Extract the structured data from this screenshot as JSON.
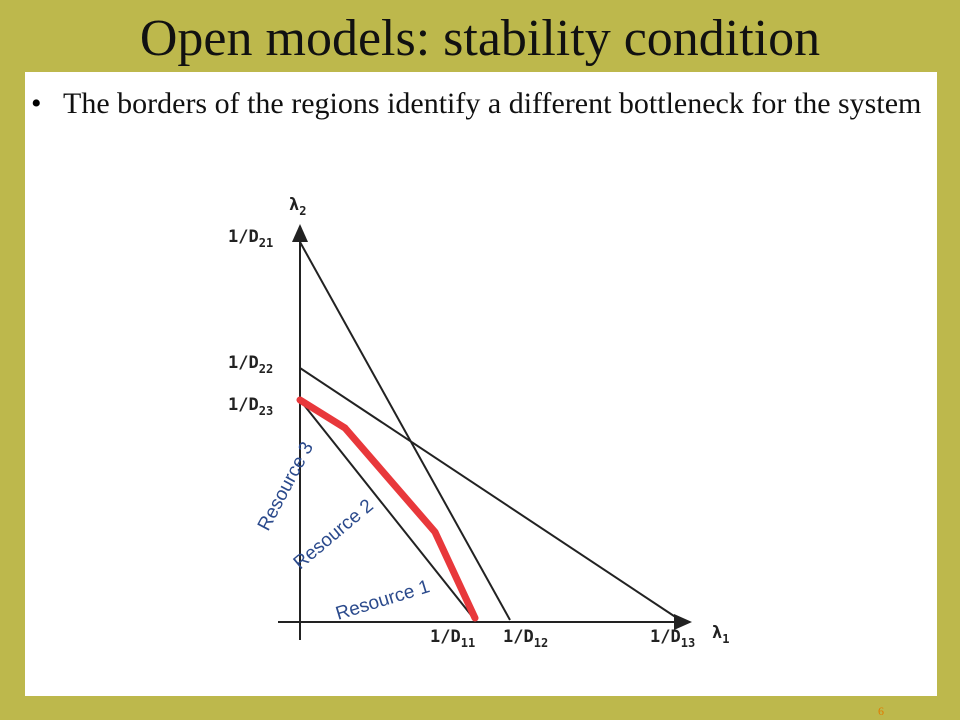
{
  "header": {
    "title": "Open models: stability condition"
  },
  "bullets": [
    "The borders of the regions identify a different bottleneck for the system"
  ],
  "diagram": {
    "y_axis_label": {
      "text": "λ",
      "sub": "2"
    },
    "x_axis_label": {
      "text": "λ",
      "sub": "1"
    },
    "y_labels": [
      {
        "text": "1/D",
        "sub": "21"
      },
      {
        "text": "1/D",
        "sub": "22"
      },
      {
        "text": "1/D",
        "sub": "23"
      }
    ],
    "x_labels": [
      {
        "text": "1/D",
        "sub": "11"
      },
      {
        "text": "1/D",
        "sub": "12"
      },
      {
        "text": "1/D",
        "sub": "13"
      }
    ],
    "regions": [
      "Resource 1",
      "Resource 2",
      "Resource 3"
    ]
  },
  "page_number": "6"
}
